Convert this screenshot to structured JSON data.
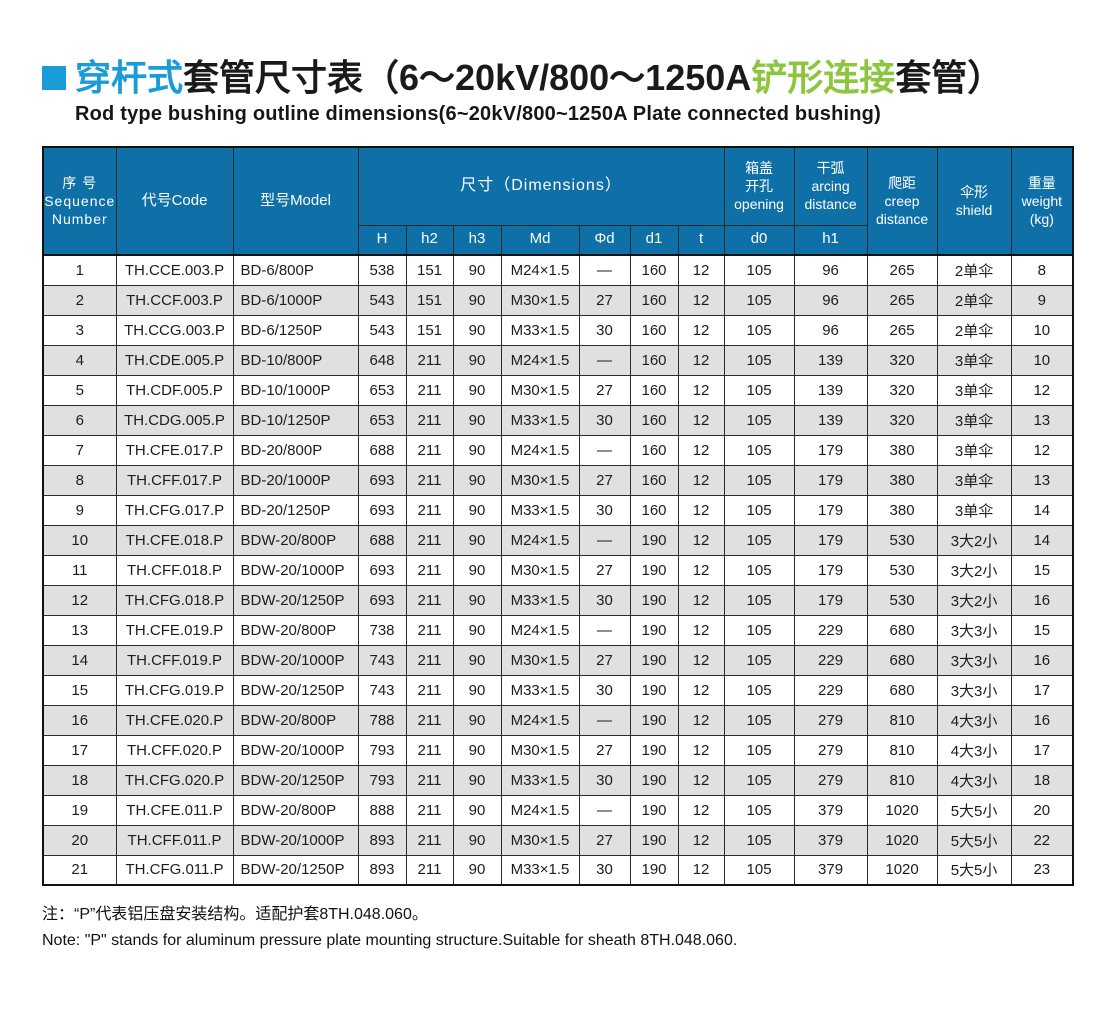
{
  "colors": {
    "accent_blue": "#199cd8",
    "accent_green": "#8cc63f",
    "header_blue": "#0f70a8",
    "row_alt": "#e0e0e0"
  },
  "title": {
    "blue": "穿杆式",
    "mid": "套管尺寸表（6～20kV/800～1250A",
    "green": "铲形连接",
    "tail": "套管）",
    "subtitle": "Rod type bushing outline dimensions(6~20kV/800~1250A Plate connected bushing)"
  },
  "table": {
    "header": {
      "seq": "序 号\nSequence\nNumber",
      "code": "代号Code",
      "model": "型号Model",
      "dimensions": "尺寸（Dimensions）",
      "dim_cols": [
        "H",
        "h2",
        "h3",
        "Md",
        "Φd",
        "d1",
        "t"
      ],
      "opening": "箱盖\n开孔\nopening",
      "opening_sub": "d0",
      "arcing": "干弧\narcing\ndistance",
      "arcing_sub": "h1",
      "creep": "爬距\ncreep\ndistance",
      "shield": "伞形\nshield",
      "weight": "重量\nweight\n(kg)"
    },
    "rows": [
      [
        "1",
        "TH.CCE.003.P",
        "BD-6/800P",
        "538",
        "151",
        "90",
        "M24×1.5",
        "—",
        "160",
        "12",
        "105",
        "96",
        "265",
        "2单伞",
        "8"
      ],
      [
        "2",
        "TH.CCF.003.P",
        "BD-6/1000P",
        "543",
        "151",
        "90",
        "M30×1.5",
        "27",
        "160",
        "12",
        "105",
        "96",
        "265",
        "2单伞",
        "9"
      ],
      [
        "3",
        "TH.CCG.003.P",
        "BD-6/1250P",
        "543",
        "151",
        "90",
        "M33×1.5",
        "30",
        "160",
        "12",
        "105",
        "96",
        "265",
        "2单伞",
        "10"
      ],
      [
        "4",
        "TH.CDE.005.P",
        "BD-10/800P",
        "648",
        "211",
        "90",
        "M24×1.5",
        "—",
        "160",
        "12",
        "105",
        "139",
        "320",
        "3单伞",
        "10"
      ],
      [
        "5",
        "TH.CDF.005.P",
        "BD-10/1000P",
        "653",
        "211",
        "90",
        "M30×1.5",
        "27",
        "160",
        "12",
        "105",
        "139",
        "320",
        "3单伞",
        "12"
      ],
      [
        "6",
        "TH.CDG.005.P",
        "BD-10/1250P",
        "653",
        "211",
        "90",
        "M33×1.5",
        "30",
        "160",
        "12",
        "105",
        "139",
        "320",
        "3单伞",
        "13"
      ],
      [
        "7",
        "TH.CFE.017.P",
        "BD-20/800P",
        "688",
        "211",
        "90",
        "M24×1.5",
        "—",
        "160",
        "12",
        "105",
        "179",
        "380",
        "3单伞",
        "12"
      ],
      [
        "8",
        "TH.CFF.017.P",
        "BD-20/1000P",
        "693",
        "211",
        "90",
        "M30×1.5",
        "27",
        "160",
        "12",
        "105",
        "179",
        "380",
        "3单伞",
        "13"
      ],
      [
        "9",
        "TH.CFG.017.P",
        "BD-20/1250P",
        "693",
        "211",
        "90",
        "M33×1.5",
        "30",
        "160",
        "12",
        "105",
        "179",
        "380",
        "3单伞",
        "14"
      ],
      [
        "10",
        "TH.CFE.018.P",
        "BDW-20/800P",
        "688",
        "211",
        "90",
        "M24×1.5",
        "—",
        "190",
        "12",
        "105",
        "179",
        "530",
        "3大2小",
        "14"
      ],
      [
        "11",
        "TH.CFF.018.P",
        "BDW-20/1000P",
        "693",
        "211",
        "90",
        "M30×1.5",
        "27",
        "190",
        "12",
        "105",
        "179",
        "530",
        "3大2小",
        "15"
      ],
      [
        "12",
        "TH.CFG.018.P",
        "BDW-20/1250P",
        "693",
        "211",
        "90",
        "M33×1.5",
        "30",
        "190",
        "12",
        "105",
        "179",
        "530",
        "3大2小",
        "16"
      ],
      [
        "13",
        "TH.CFE.019.P",
        "BDW-20/800P",
        "738",
        "211",
        "90",
        "M24×1.5",
        "—",
        "190",
        "12",
        "105",
        "229",
        "680",
        "3大3小",
        "15"
      ],
      [
        "14",
        "TH.CFF.019.P",
        "BDW-20/1000P",
        "743",
        "211",
        "90",
        "M30×1.5",
        "27",
        "190",
        "12",
        "105",
        "229",
        "680",
        "3大3小",
        "16"
      ],
      [
        "15",
        "TH.CFG.019.P",
        "BDW-20/1250P",
        "743",
        "211",
        "90",
        "M33×1.5",
        "30",
        "190",
        "12",
        "105",
        "229",
        "680",
        "3大3小",
        "17"
      ],
      [
        "16",
        "TH.CFE.020.P",
        "BDW-20/800P",
        "788",
        "211",
        "90",
        "M24×1.5",
        "—",
        "190",
        "12",
        "105",
        "279",
        "810",
        "4大3小",
        "16"
      ],
      [
        "17",
        "TH.CFF.020.P",
        "BDW-20/1000P",
        "793",
        "211",
        "90",
        "M30×1.5",
        "27",
        "190",
        "12",
        "105",
        "279",
        "810",
        "4大3小",
        "17"
      ],
      [
        "18",
        "TH.CFG.020.P",
        "BDW-20/1250P",
        "793",
        "211",
        "90",
        "M33×1.5",
        "30",
        "190",
        "12",
        "105",
        "279",
        "810",
        "4大3小",
        "18"
      ],
      [
        "19",
        "TH.CFE.011.P",
        "BDW-20/800P",
        "888",
        "211",
        "90",
        "M24×1.5",
        "—",
        "190",
        "12",
        "105",
        "379",
        "1020",
        "5大5小",
        "20"
      ],
      [
        "20",
        "TH.CFF.011.P",
        "BDW-20/1000P",
        "893",
        "211",
        "90",
        "M30×1.5",
        "27",
        "190",
        "12",
        "105",
        "379",
        "1020",
        "5大5小",
        "22"
      ],
      [
        "21",
        "TH.CFG.011.P",
        "BDW-20/1250P",
        "893",
        "211",
        "90",
        "M33×1.5",
        "30",
        "190",
        "12",
        "105",
        "379",
        "1020",
        "5大5小",
        "23"
      ]
    ]
  },
  "notes": {
    "cn": "注：“P”代表铝压盘安装结构。适配护套8TH.048.060。",
    "en": "Note: \"P\" stands for aluminum pressure plate mounting structure.Suitable for sheath 8TH.048.060."
  }
}
